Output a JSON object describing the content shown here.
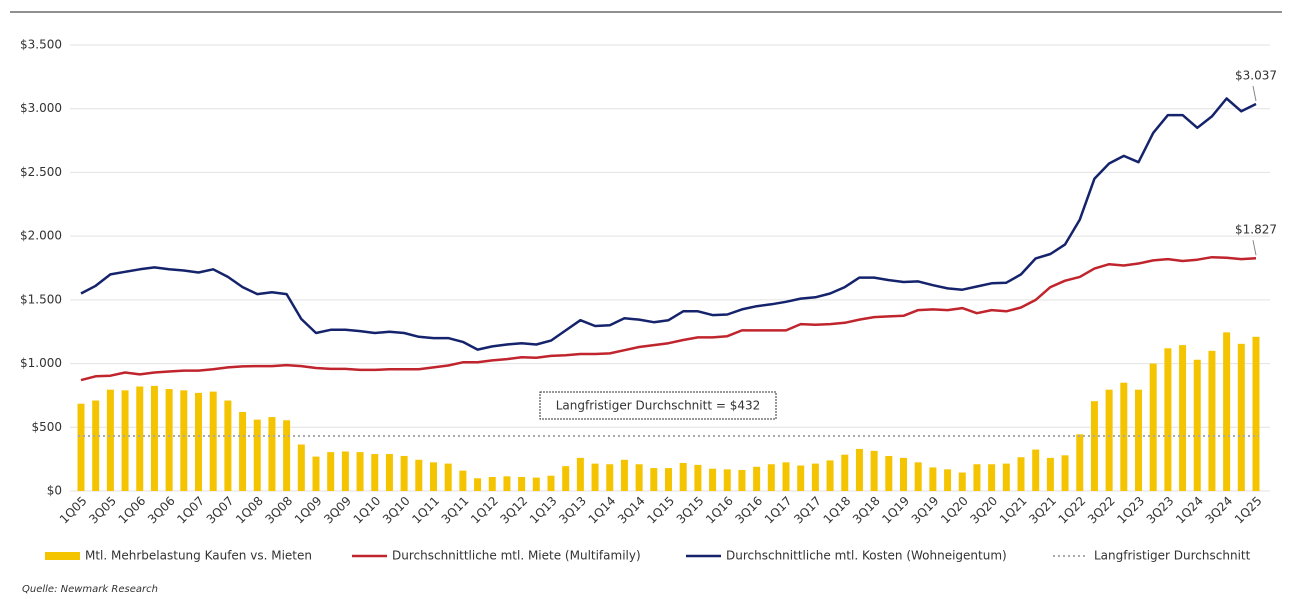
{
  "chart_data": {
    "type": "combo",
    "categories": [
      "1Q05",
      null,
      "3Q05",
      null,
      "1Q06",
      null,
      "3Q06",
      null,
      "1Q07",
      null,
      "3Q07",
      null,
      "1Q08",
      null,
      "3Q08",
      null,
      "1Q09",
      null,
      "3Q09",
      null,
      "1Q10",
      null,
      "3Q10",
      null,
      "1Q11",
      null,
      "3Q11",
      null,
      "1Q12",
      null,
      "3Q12",
      null,
      "1Q13",
      null,
      "3Q13",
      null,
      "1Q14",
      null,
      "3Q14",
      null,
      "1Q15",
      null,
      "3Q15",
      null,
      "1Q16",
      null,
      "3Q16",
      null,
      "1Q17",
      null,
      "3Q17",
      null,
      "1Q18",
      null,
      "3Q18",
      null,
      "1Q19",
      null,
      "3Q19",
      null,
      "1Q20",
      null,
      "3Q20",
      null,
      "1Q21",
      null,
      "3Q21",
      null,
      "1Q22",
      null,
      "3Q22",
      null,
      "1Q23",
      null,
      "3Q23",
      null,
      "1Q24",
      null,
      "3Q24",
      null,
      "1Q25"
    ],
    "series": [
      {
        "name": "Mtl. Mehrbelastung Kaufen vs. Mieten",
        "kind": "bar",
        "color": "#f5c400",
        "values": [
          685,
          710,
          795,
          790,
          820,
          825,
          800,
          790,
          770,
          780,
          710,
          620,
          560,
          580,
          555,
          365,
          270,
          305,
          310,
          305,
          290,
          290,
          275,
          245,
          225,
          215,
          160,
          100,
          110,
          115,
          110,
          105,
          120,
          195,
          260,
          215,
          210,
          245,
          210,
          180,
          180,
          220,
          205,
          175,
          170,
          165,
          190,
          210,
          225,
          200,
          215,
          240,
          285,
          330,
          315,
          275,
          260,
          225,
          185,
          170,
          145,
          210,
          210,
          215,
          265,
          325,
          260,
          280,
          445,
          705,
          795,
          850,
          795,
          1000,
          1120,
          1145,
          1030,
          1100,
          1245,
          1155,
          1210
        ]
      },
      {
        "name": "Durchschnittliche mtl. Miete (Multifamily)",
        "kind": "line",
        "color": "#c0242d",
        "values": [
          870,
          900,
          905,
          930,
          915,
          930,
          938,
          945,
          945,
          955,
          970,
          978,
          980,
          980,
          988,
          980,
          965,
          958,
          958,
          950,
          950,
          955,
          955,
          955,
          970,
          985,
          1010,
          1010,
          1025,
          1035,
          1050,
          1045,
          1060,
          1065,
          1075,
          1075,
          1080,
          1105,
          1130,
          1145,
          1160,
          1185,
          1205,
          1205,
          1215,
          1260,
          1260,
          1260,
          1260,
          1310,
          1305,
          1310,
          1320,
          1345,
          1365,
          1370,
          1375,
          1420,
          1425,
          1420,
          1435,
          1395,
          1420,
          1410,
          1440,
          1500,
          1600,
          1650,
          1680,
          1745,
          1780,
          1770,
          1785,
          1810,
          1820,
          1805,
          1815,
          1835,
          1830,
          1820,
          1827
        ],
        "value_labels": {
          "80": "$1.827"
        }
      },
      {
        "name": "Durchschnittliche mtl. Kosten (Wohneigentum)",
        "kind": "line",
        "color": "#14236b",
        "values": [
          1550,
          1610,
          1700,
          1720,
          1740,
          1755,
          1740,
          1730,
          1715,
          1740,
          1680,
          1600,
          1545,
          1560,
          1545,
          1350,
          1240,
          1265,
          1265,
          1255,
          1240,
          1250,
          1240,
          1210,
          1200,
          1200,
          1170,
          1110,
          1135,
          1150,
          1160,
          1150,
          1180,
          1260,
          1340,
          1295,
          1300,
          1355,
          1345,
          1325,
          1340,
          1410,
          1410,
          1380,
          1385,
          1425,
          1450,
          1465,
          1485,
          1510,
          1520,
          1550,
          1600,
          1675,
          1675,
          1655,
          1640,
          1645,
          1615,
          1590,
          1580,
          1605,
          1630,
          1635,
          1700,
          1825,
          1860,
          1935,
          2130,
          2450,
          2570,
          2630,
          2580,
          2810,
          2950,
          2950,
          2850,
          2940,
          3080,
          2980,
          3037
        ],
        "value_labels": {
          "80": "$3.037"
        }
      }
    ],
    "reference_line": {
      "name": "Langfristiger Durchschnitt",
      "value": 432,
      "color": "#aaaaaa",
      "annotation": "Langfristiger Durchschnitt = $432"
    },
    "ylim": [
      0,
      3500
    ],
    "yticks": [
      {
        "value": 0,
        "label": "$0"
      },
      {
        "value": 500,
        "label": "$500"
      },
      {
        "value": 1000,
        "label": "$1.000"
      },
      {
        "value": 1500,
        "label": "$1.500"
      },
      {
        "value": 2000,
        "label": "$2.000"
      },
      {
        "value": 2500,
        "label": "$2.500"
      },
      {
        "value": 3000,
        "label": "$3.000"
      },
      {
        "value": 3500,
        "label": "$3.500"
      }
    ],
    "grid": true,
    "source": "Quelle: Newmark Research"
  }
}
